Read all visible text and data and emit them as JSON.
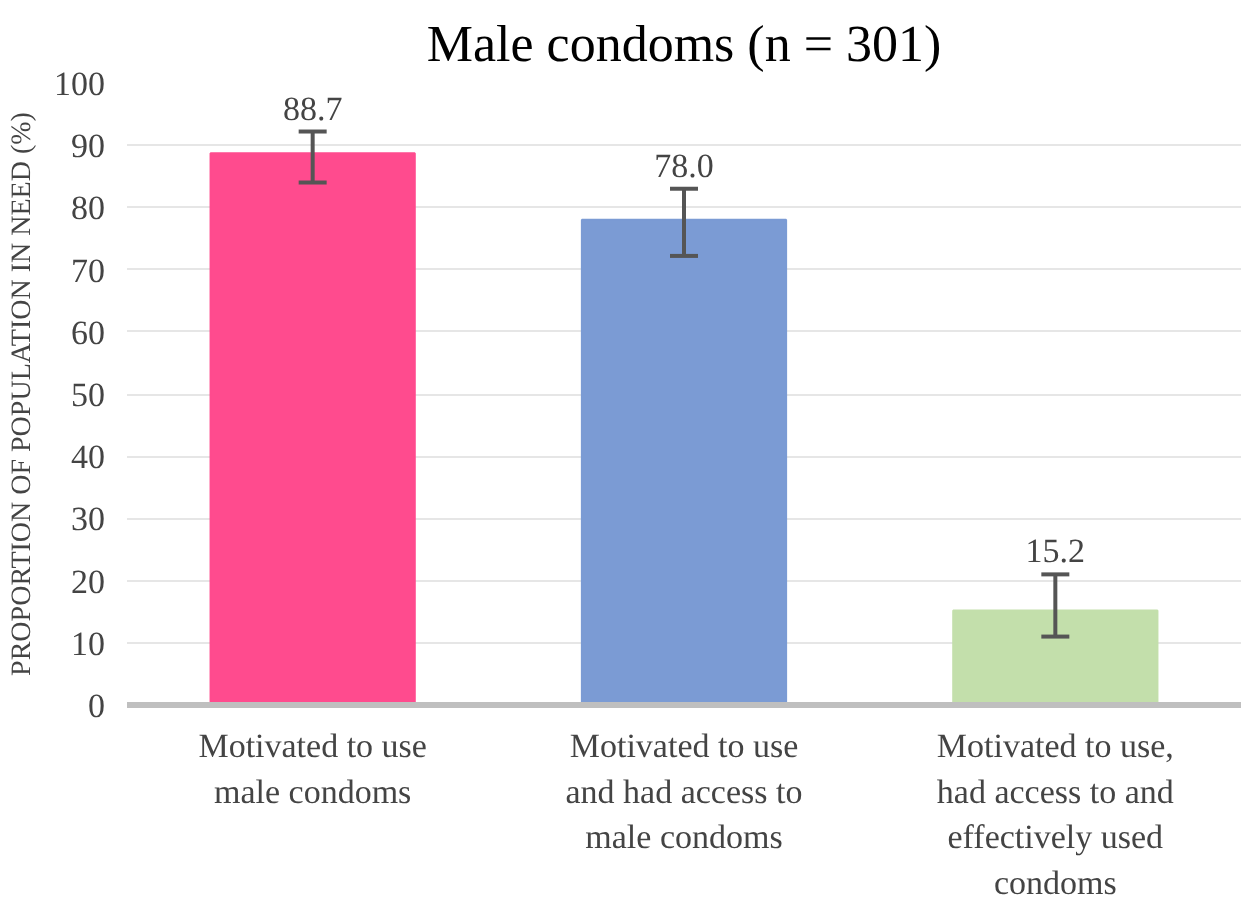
{
  "chart_data": {
    "type": "bar",
    "title": "Male condoms (n = 301)",
    "ylabel": "PROPORTION OF POPULATION IN NEED (%)",
    "categories": [
      "Motivated to use male condoms",
      "Motivated to use and had access to male condoms",
      "Motivated to use, had access to and effectively used condoms"
    ],
    "values": [
      88.7,
      78.0,
      15.2
    ],
    "colors": [
      "#ff4b8e",
      "#7b9bd4",
      "#c3dfab"
    ],
    "errors": [
      [
        84.0,
        92.2
      ],
      [
        72.2,
        83.0
      ],
      [
        11.0,
        21.0
      ]
    ],
    "value_labels": [
      "88.7",
      "78.0",
      "15.2"
    ],
    "ylim": [
      0,
      100
    ],
    "yticks": [
      0,
      10,
      20,
      30,
      40,
      50,
      60,
      70,
      80,
      90,
      100
    ],
    "grid": "y"
  }
}
